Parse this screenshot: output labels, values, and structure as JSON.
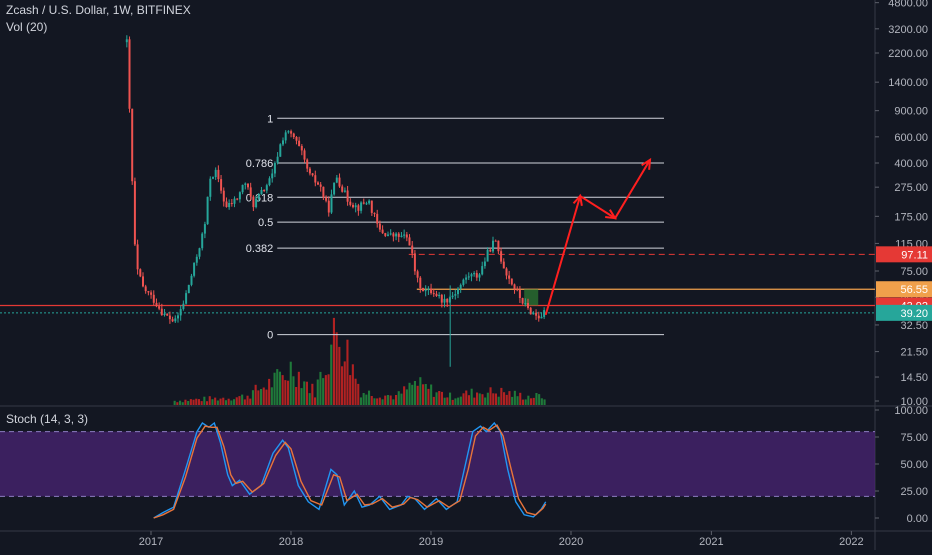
{
  "header": {
    "title": "Zcash / U.S. Dollar, 1W, BITFINEX",
    "volume_label": "Vol (20)",
    "stoch_label": "Stoch (14, 3, 3)"
  },
  "colors": {
    "background": "#131722",
    "up": "#26a69a",
    "down": "#ef5350",
    "volume_up": "#1f7a3a",
    "volume_down": "#b22222",
    "fib_line": "#d1d4dc",
    "k_line": "#2196f3",
    "d_line": "#e8743b",
    "stoch_band": "#4a2474",
    "arrow": "#ff1f1f",
    "resistance_dashed": "#e53935",
    "badge_red": "#e53935",
    "badge_orange": "#f0a04b",
    "badge_teal": "#26a69a"
  },
  "chart_data": [
    {
      "type": "candlestick",
      "title": "Zcash / U.S. Dollar, 1W, BITFINEX",
      "scale": "log",
      "x_ticks": [
        "2017",
        "2018",
        "2019",
        "2020",
        "2021",
        "2022"
      ],
      "y_ticks": [
        "4800.00",
        "3200.00",
        "2200.00",
        "1400.00",
        "900.00",
        "600.00",
        "400.00",
        "275.00",
        "175.00",
        "115.00",
        "75.00",
        "50.00",
        "32.50",
        "21.50",
        "14.50",
        "10.00"
      ],
      "y_tick_values": [
        4800,
        3200,
        2200,
        1400,
        900,
        600,
        400,
        275,
        175,
        115,
        75,
        50,
        32.5,
        21.5,
        14.5,
        10
      ],
      "close_path": [
        [
          "2016-10-30",
          2600
        ],
        [
          "2016-11-06",
          900
        ],
        [
          "2016-11-13",
          300
        ],
        [
          "2016-11-20",
          110
        ],
        [
          "2016-11-27",
          75
        ],
        [
          "2016-12-11",
          58
        ],
        [
          "2017-01-08",
          48
        ],
        [
          "2017-02-05",
          38
        ],
        [
          "2017-03-05",
          34
        ],
        [
          "2017-03-26",
          45
        ],
        [
          "2017-04-23",
          80
        ],
        [
          "2017-05-21",
          150
        ],
        [
          "2017-06-04",
          320
        ],
        [
          "2017-06-18",
          350
        ],
        [
          "2017-07-16",
          200
        ],
        [
          "2017-08-13",
          230
        ],
        [
          "2017-09-03",
          300
        ],
        [
          "2017-09-24",
          210
        ],
        [
          "2017-10-15",
          250
        ],
        [
          "2017-11-12",
          320
        ],
        [
          "2017-12-03",
          520
        ],
        [
          "2017-12-17",
          650
        ],
        [
          "2018-01-07",
          600
        ],
        [
          "2018-01-28",
          470
        ],
        [
          "2018-02-18",
          330
        ],
        [
          "2018-03-18",
          280
        ],
        [
          "2018-04-08",
          190
        ],
        [
          "2018-04-29",
          330
        ],
        [
          "2018-05-27",
          230
        ],
        [
          "2018-06-24",
          200
        ],
        [
          "2018-07-22",
          225
        ],
        [
          "2018-08-19",
          140
        ],
        [
          "2018-09-16",
          130
        ],
        [
          "2018-10-14",
          128
        ],
        [
          "2018-11-04",
          125
        ],
        [
          "2018-11-25",
          65
        ],
        [
          "2018-12-16",
          55
        ],
        [
          "2019-01-06",
          55
        ],
        [
          "2019-02-03",
          47
        ],
        [
          "2019-03-03",
          53
        ],
        [
          "2019-04-07",
          70
        ],
        [
          "2019-05-05",
          70
        ],
        [
          "2019-06-02",
          105
        ],
        [
          "2019-06-16",
          120
        ],
        [
          "2019-07-14",
          75
        ],
        [
          "2019-08-11",
          55
        ],
        [
          "2019-09-08",
          42
        ],
        [
          "2019-10-06",
          37
        ],
        [
          "2019-10-27",
          39.2
        ]
      ],
      "volume_path": [
        [
          "2017-03-01",
          1
        ],
        [
          "2017-06-15",
          1.5
        ],
        [
          "2017-09-01",
          2
        ],
        [
          "2017-12-15",
          7
        ],
        [
          "2018-01-01",
          9
        ],
        [
          "2018-03-01",
          3
        ],
        [
          "2018-05-01",
          18
        ],
        [
          "2018-07-01",
          3
        ],
        [
          "2018-10-01",
          2
        ],
        [
          "2018-11-18",
          5
        ],
        [
          "2018-12-15",
          4
        ],
        [
          "2019-02-15",
          2
        ],
        [
          "2019-05-01",
          3
        ],
        [
          "2019-07-01",
          3
        ],
        [
          "2019-09-01",
          2
        ],
        [
          "2019-10-27",
          2
        ]
      ],
      "fibonacci": [
        {
          "label": "1",
          "value": 800
        },
        {
          "label": "0.786",
          "value": 400
        },
        {
          "label": "0.618",
          "value": 235
        },
        {
          "label": "0.5",
          "value": 160
        },
        {
          "label": "0.382",
          "value": 107
        },
        {
          "label": "0",
          "value": 28
        }
      ],
      "price_labels": [
        {
          "text": "97.11",
          "value": 97.11,
          "color": "#e53935"
        },
        {
          "text": "56.55",
          "value": 56.55,
          "color": "#f0a04b"
        },
        {
          "text": "43.92",
          "value": 43.92,
          "color": "#e53935"
        },
        {
          "text": "39.20",
          "value": 39.2,
          "color": "#26a69a"
        }
      ],
      "projection": [
        [
          "2019-10-27",
          38
        ],
        [
          "2020-01-25",
          240
        ],
        [
          "2020-04-25",
          170
        ],
        [
          "2020-07-25",
          420
        ]
      ]
    },
    {
      "type": "line",
      "title": "Stoch (14, 3, 3)",
      "y_ticks": [
        "100.00",
        "75.00",
        "50.00",
        "25.00",
        "0.00"
      ],
      "y_tick_values": [
        100,
        75,
        50,
        25,
        0
      ],
      "band": [
        20,
        80
      ],
      "series": [
        {
          "color": "#2196f3",
          "points": [
            [
              "2017-01-08",
              0
            ],
            [
              "2017-02-01",
              5
            ],
            [
              "2017-03-01",
              10
            ],
            [
              "2017-04-01",
              45
            ],
            [
              "2017-05-01",
              80
            ],
            [
              "2017-05-15",
              88
            ],
            [
              "2017-06-01",
              84
            ],
            [
              "2017-06-15",
              88
            ],
            [
              "2017-07-01",
              70
            ],
            [
              "2017-07-20",
              40
            ],
            [
              "2017-08-01",
              30
            ],
            [
              "2017-08-20",
              35
            ],
            [
              "2017-09-15",
              22
            ],
            [
              "2017-10-15",
              30
            ],
            [
              "2017-11-15",
              60
            ],
            [
              "2017-12-10",
              72
            ],
            [
              "2017-12-25",
              65
            ],
            [
              "2018-01-20",
              30
            ],
            [
              "2018-02-15",
              15
            ],
            [
              "2018-03-15",
              8
            ],
            [
              "2018-04-15",
              45
            ],
            [
              "2018-05-01",
              40
            ],
            [
              "2018-05-20",
              12
            ],
            [
              "2018-06-15",
              25
            ],
            [
              "2018-07-05",
              10
            ],
            [
              "2018-07-25",
              12
            ],
            [
              "2018-08-20",
              20
            ],
            [
              "2018-09-15",
              8
            ],
            [
              "2018-10-15",
              12
            ],
            [
              "2018-11-01",
              20
            ],
            [
              "2018-11-20",
              18
            ],
            [
              "2018-12-15",
              8
            ],
            [
              "2019-01-15",
              18
            ],
            [
              "2019-02-10",
              8
            ],
            [
              "2019-03-10",
              15
            ],
            [
              "2019-04-01",
              50
            ],
            [
              "2019-04-20",
              80
            ],
            [
              "2019-05-10",
              85
            ],
            [
              "2019-05-25",
              80
            ],
            [
              "2019-06-15",
              88
            ],
            [
              "2019-07-01",
              80
            ],
            [
              "2019-07-20",
              45
            ],
            [
              "2019-08-10",
              15
            ],
            [
              "2019-09-01",
              3
            ],
            [
              "2019-09-25",
              1
            ],
            [
              "2019-10-15",
              8
            ],
            [
              "2019-10-27",
              15
            ]
          ]
        },
        {
          "color": "#e8743b",
          "points": [
            [
              "2017-01-08",
              0
            ],
            [
              "2017-02-01",
              3
            ],
            [
              "2017-03-01",
              8
            ],
            [
              "2017-04-01",
              38
            ],
            [
              "2017-05-01",
              74
            ],
            [
              "2017-05-22",
              85
            ],
            [
              "2017-06-08",
              84
            ],
            [
              "2017-06-22",
              84
            ],
            [
              "2017-07-10",
              66
            ],
            [
              "2017-07-28",
              40
            ],
            [
              "2017-08-10",
              32
            ],
            [
              "2017-08-28",
              34
            ],
            [
              "2017-09-22",
              24
            ],
            [
              "2017-10-22",
              32
            ],
            [
              "2017-11-22",
              58
            ],
            [
              "2017-12-17",
              70
            ],
            [
              "2018-01-01",
              64
            ],
            [
              "2018-01-27",
              34
            ],
            [
              "2018-02-22",
              16
            ],
            [
              "2018-03-22",
              12
            ],
            [
              "2018-04-22",
              40
            ],
            [
              "2018-05-08",
              38
            ],
            [
              "2018-05-27",
              16
            ],
            [
              "2018-06-22",
              22
            ],
            [
              "2018-07-12",
              12
            ],
            [
              "2018-08-01",
              13
            ],
            [
              "2018-08-27",
              18
            ],
            [
              "2018-09-22",
              10
            ],
            [
              "2018-10-22",
              13
            ],
            [
              "2018-11-08",
              19
            ],
            [
              "2018-11-27",
              17
            ],
            [
              "2018-12-22",
              10
            ],
            [
              "2019-01-22",
              16
            ],
            [
              "2019-02-17",
              10
            ],
            [
              "2019-03-17",
              16
            ],
            [
              "2019-04-08",
              45
            ],
            [
              "2019-04-27",
              76
            ],
            [
              "2019-05-17",
              84
            ],
            [
              "2019-06-01",
              81
            ],
            [
              "2019-06-22",
              86
            ],
            [
              "2019-07-08",
              76
            ],
            [
              "2019-07-27",
              48
            ],
            [
              "2019-08-17",
              18
            ],
            [
              "2019-09-08",
              5
            ],
            [
              "2019-10-01",
              3
            ],
            [
              "2019-10-20",
              9
            ],
            [
              "2019-10-27",
              13
            ]
          ]
        }
      ]
    }
  ]
}
